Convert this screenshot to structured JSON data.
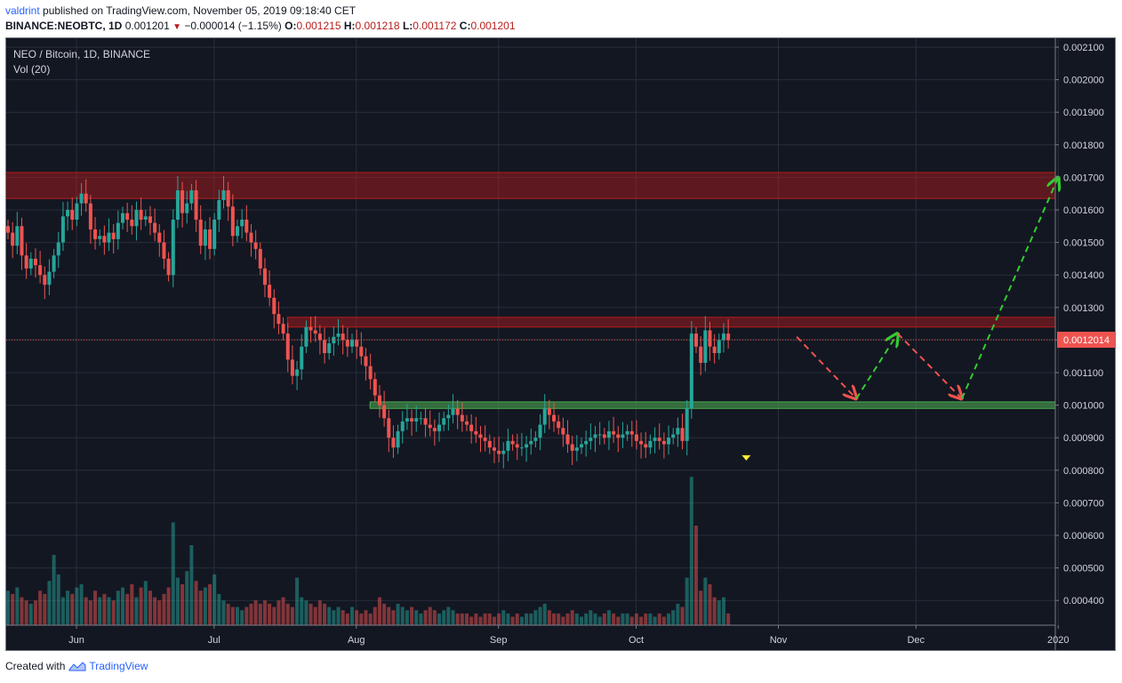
{
  "header": {
    "user": "valdrint",
    "published_text": "published on TradingView.com, November 05, 2019 09:18:40 CET"
  },
  "ohlc": {
    "symbol": "BINANCE:NEOBTC, 1D",
    "last": "0.001201",
    "change": "−0.000014 (−1.15%)",
    "o_label": "O:",
    "o": "0.001215",
    "h_label": "H:",
    "h": "0.001218",
    "l_label": "L:",
    "l": "0.001172",
    "c_label": "C:",
    "c": "0.001201"
  },
  "footer": {
    "created_with": "Created with",
    "brand": "TradingView"
  },
  "colors": {
    "background": "#131722",
    "up": "#26a69a",
    "down": "#ef5350",
    "resistance_zone": "#b71c1c",
    "support_zone": "#4caf50",
    "bearish_arrow": "#ef5350",
    "bullish_arrow": "#33cc33",
    "price_label": "#ef5350",
    "marker": "#ffeb3b"
  },
  "chart_data": {
    "type": "candlestick",
    "pane_title": "NEO / Bitcoin, 1D, BINANCE",
    "volume_label": "Vol (20)",
    "last_price_label": "0.0012014",
    "y_axis_ticks": [
      "0.002100",
      "0.002000",
      "0.001900",
      "0.001800",
      "0.001700",
      "0.001600",
      "0.001500",
      "0.001400",
      "0.001300",
      "0.001200",
      "0.001100",
      "0.001000",
      "0.000900",
      "0.000800",
      "0.000700",
      "0.000600",
      "0.000500",
      "0.000400"
    ],
    "x_axis_ticks": [
      "Jun",
      "Jul",
      "Aug",
      "Sep",
      "Oct",
      "Nov",
      "Dec",
      "2020"
    ],
    "grid": true,
    "zones": [
      {
        "name": "upper resistance",
        "from": 0.001635,
        "to": 0.001715,
        "start": "2019-05-13"
      },
      {
        "name": "resistance",
        "from": 0.00124,
        "to": 0.00127,
        "start": "2019-07-17"
      },
      {
        "name": "support",
        "from": 0.00099,
        "to": 0.00101,
        "start": "2019-08-04"
      }
    ],
    "projection_path": [
      {
        "date": "2019-11-05",
        "price": 0.00121,
        "dir": "down"
      },
      {
        "date": "2019-11-18",
        "price": 0.00102,
        "dir": "up"
      },
      {
        "date": "2019-11-27",
        "price": 0.00122,
        "dir": "down"
      },
      {
        "date": "2019-12-11",
        "price": 0.00102,
        "dir": "up"
      },
      {
        "date": "2020-01-01",
        "price": 0.0017,
        "dir": ""
      }
    ],
    "marker": {
      "date": "2019-10-25",
      "price": 0.00083
    },
    "close_series": [
      0.00153,
      0.00149,
      0.00155,
      0.00146,
      0.00142,
      0.00145,
      0.00143,
      0.0014,
      0.00137,
      0.00141,
      0.00146,
      0.0015,
      0.00158,
      0.0016,
      0.00157,
      0.00162,
      0.00165,
      0.00162,
      0.00154,
      0.00151,
      0.00152,
      0.0015,
      0.00153,
      0.00151,
      0.00156,
      0.00159,
      0.00157,
      0.00155,
      0.0016,
      0.00157,
      0.00158,
      0.00156,
      0.00153,
      0.0015,
      0.00145,
      0.0014,
      0.00157,
      0.00166,
      0.00159,
      0.00162,
      0.00166,
      0.00157,
      0.00149,
      0.00154,
      0.00148,
      0.00157,
      0.00163,
      0.00166,
      0.00161,
      0.00152,
      0.00155,
      0.00157,
      0.00153,
      0.0015,
      0.00148,
      0.00142,
      0.00137,
      0.00133,
      0.00128,
      0.00125,
      0.00122,
      0.00114,
      0.00109,
      0.00111,
      0.00118,
      0.00124,
      0.00123,
      0.00122,
      0.0012,
      0.00116,
      0.00119,
      0.00121,
      0.00122,
      0.0012,
      0.00118,
      0.0012,
      0.00118,
      0.00115,
      0.00112,
      0.00108,
      0.00103,
      0.001,
      0.00096,
      0.0009,
      0.00087,
      0.00092,
      0.00095,
      0.00096,
      0.00095,
      0.00096,
      0.00096,
      0.00094,
      0.00093,
      0.00092,
      0.00094,
      0.00096,
      0.00097,
      0.00099,
      0.00097,
      0.00095,
      0.00094,
      0.00092,
      0.00091,
      0.0009,
      0.00089,
      0.00087,
      0.00086,
      0.00085,
      0.00086,
      0.00089,
      0.00088,
      0.00087,
      0.00087,
      0.00088,
      0.00089,
      0.0009,
      0.00094,
      0.00099,
      0.00097,
      0.00095,
      0.00093,
      0.00091,
      0.00088,
      0.00086,
      0.00087,
      0.00088,
      0.00089,
      0.0009,
      0.00091,
      0.00091,
      0.0009,
      0.00092,
      0.00091,
      0.0009,
      0.00091,
      0.00092,
      0.00091,
      0.00089,
      0.00088,
      0.00087,
      0.00089,
      0.0009,
      0.00089,
      0.00088,
      0.0009,
      0.00091,
      0.00093,
      0.00089,
      0.00099,
      0.00122,
      0.00118,
      0.00113,
      0.00123,
      0.00118,
      0.00116,
      0.0012,
      0.00122,
      0.0012
    ],
    "volume_series": [
      0.00043,
      0.00042,
      0.00044,
      0.00041,
      0.0004,
      0.00039,
      0.0004,
      0.00043,
      0.00042,
      0.00046,
      0.00054,
      0.00048,
      0.00041,
      0.00043,
      0.00042,
      0.00044,
      0.00045,
      0.00041,
      0.0004,
      0.00043,
      0.00041,
      0.00042,
      0.00041,
      0.0004,
      0.00043,
      0.00044,
      0.00042,
      0.00045,
      0.00041,
      0.00044,
      0.00046,
      0.00043,
      0.00041,
      0.0004,
      0.00042,
      0.00044,
      0.00064,
      0.00047,
      0.00045,
      0.00049,
      0.00057,
      0.00046,
      0.00043,
      0.00044,
      0.00045,
      0.00048,
      0.00042,
      0.0004,
      0.00039,
      0.00038,
      0.00038,
      0.00037,
      0.00038,
      0.00039,
      0.0004,
      0.00039,
      0.0004,
      0.00039,
      0.00038,
      0.0004,
      0.00041,
      0.00039,
      0.00038,
      0.00047,
      0.00041,
      0.0004,
      0.00039,
      0.00038,
      0.0004,
      0.00039,
      0.00038,
      0.00037,
      0.00038,
      0.00037,
      0.00036,
      0.00038,
      0.00037,
      0.00036,
      0.00037,
      0.00036,
      0.00038,
      0.00041,
      0.00039,
      0.00038,
      0.00037,
      0.00039,
      0.00038,
      0.00037,
      0.00038,
      0.00037,
      0.00036,
      0.00037,
      0.00038,
      0.00037,
      0.00036,
      0.00037,
      0.00038,
      0.00037,
      0.00036,
      0.00036,
      0.00036,
      0.00035,
      0.00036,
      0.00035,
      0.00036,
      0.00036,
      0.00035,
      0.00036,
      0.00037,
      0.00036,
      0.00035,
      0.00036,
      0.00035,
      0.00036,
      0.00036,
      0.00037,
      0.00038,
      0.00039,
      0.00037,
      0.00036,
      0.00036,
      0.00035,
      0.00036,
      0.00037,
      0.00036,
      0.00035,
      0.00036,
      0.00037,
      0.00036,
      0.00035,
      0.00036,
      0.00037,
      0.00036,
      0.00035,
      0.00036,
      0.00036,
      0.00035,
      0.00036,
      0.00035,
      0.00036,
      0.00036,
      0.00035,
      0.00036,
      0.00035,
      0.00036,
      0.00037,
      0.00039,
      0.00038,
      0.00047,
      0.00078,
      0.00063,
      0.00043,
      0.00047,
      0.00045,
      0.00041,
      0.0004,
      0.00041,
      0.00036
    ]
  }
}
